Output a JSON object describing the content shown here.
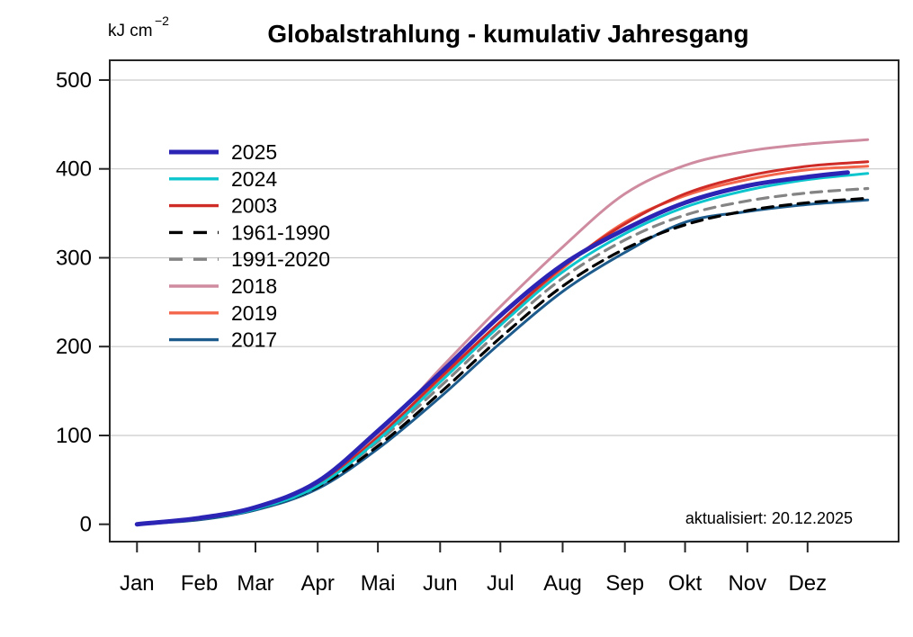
{
  "chart_data": {
    "type": "line",
    "title": "Globalstrahlung - kumulativ Jahresgang",
    "y_unit": "kJ cm",
    "y_unit_exponent": "−2",
    "annotation": "aktualisiert: 20.12.2025",
    "x_tick_labels": [
      "Jan",
      "Feb",
      "Mar",
      "Apr",
      "Mai",
      "Jun",
      "Jul",
      "Aug",
      "Sep",
      "Okt",
      "Nov",
      "Dez"
    ],
    "x_tick_days": [
      0,
      31,
      59,
      90,
      120,
      151,
      181,
      212,
      243,
      273,
      304,
      334
    ],
    "xlim_days": [
      0,
      364
    ],
    "y_ticks": [
      0,
      100,
      200,
      300,
      400,
      500
    ],
    "ylim": [
      0,
      500
    ],
    "grid_lines_at": [
      100,
      200,
      300,
      400,
      500
    ],
    "grid_on": true,
    "legend_position": "upper-left-inside",
    "axis_color": "#262626",
    "grid_color": "#c9c9c9",
    "control_days": [
      0,
      31,
      59,
      90,
      120,
      151,
      181,
      212,
      243,
      273,
      304,
      334,
      364
    ],
    "series": [
      {
        "name": "2025",
        "color": "#2B24B4",
        "dash": false,
        "width": 5,
        "last_day": 354,
        "values": [
          0,
          7,
          19,
          48,
          105,
          170,
          235,
          292,
          332,
          362,
          381,
          391,
          396
        ]
      },
      {
        "name": "2024",
        "color": "#0CC5CD",
        "dash": false,
        "width": 3,
        "last_day": 364,
        "values": [
          0,
          6,
          17,
          43,
          95,
          160,
          224,
          284,
          327,
          357,
          376,
          388,
          395
        ]
      },
      {
        "name": "2003",
        "color": "#CF2B27",
        "dash": false,
        "width": 3,
        "last_day": 364,
        "values": [
          0,
          6,
          18,
          46,
          98,
          165,
          228,
          290,
          338,
          372,
          392,
          403,
          408
        ]
      },
      {
        "name": "1961-1990",
        "color": "#000000",
        "dash": true,
        "width": 3.2,
        "last_day": 364,
        "values": [
          0,
          6,
          17,
          42,
          88,
          148,
          210,
          268,
          310,
          337,
          353,
          362,
          367
        ]
      },
      {
        "name": "1991-2020",
        "color": "#848484",
        "dash": true,
        "width": 3.2,
        "last_day": 364,
        "values": [
          0,
          6,
          18,
          45,
          93,
          155,
          218,
          277,
          320,
          348,
          364,
          373,
          378
        ]
      },
      {
        "name": "2018",
        "color": "#CF8CA0",
        "dash": false,
        "width": 3,
        "last_day": 364,
        "values": [
          0,
          6,
          18,
          46,
          100,
          175,
          245,
          312,
          372,
          404,
          420,
          428,
          433
        ]
      },
      {
        "name": "2019",
        "color": "#F4664C",
        "dash": false,
        "width": 3,
        "last_day": 364,
        "values": [
          0,
          6,
          17,
          44,
          96,
          162,
          226,
          288,
          340,
          370,
          388,
          399,
          403
        ]
      },
      {
        "name": "2017",
        "color": "#1D5B8C",
        "dash": false,
        "width": 3,
        "last_day": 364,
        "values": [
          0,
          5,
          16,
          40,
          85,
          143,
          204,
          262,
          306,
          340,
          352,
          360,
          365
        ]
      }
    ],
    "draw_order": [
      "2018",
      "2019",
      "2017",
      "1991-2020",
      "1961-1990",
      "2003",
      "2024",
      "2025"
    ]
  }
}
